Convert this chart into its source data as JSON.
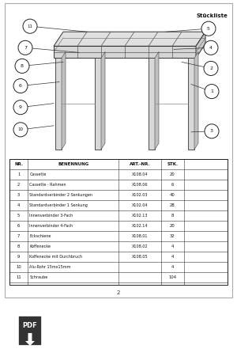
{
  "title_text": "Stückliste",
  "page_number": "2",
  "table_headers": [
    "NR.",
    "BENENNUNG",
    "ART.-NR.",
    "STK."
  ],
  "table_rows": [
    [
      "1",
      "Cassette",
      "X108.04",
      "20"
    ],
    [
      "2",
      "Cassette - Rahmen",
      "X108.06",
      "6"
    ],
    [
      "3",
      "Standardverbinder 2 Senkungen",
      "X102.03",
      "40"
    ],
    [
      "4",
      "Standardverbinder 1 Senkung",
      "X102.04",
      "28"
    ],
    [
      "5",
      "Innenverbinder 3-Fach",
      "X102.13",
      "8"
    ],
    [
      "6",
      "Innenverbinder 4-Fach",
      "X102.14",
      "20"
    ],
    [
      "7",
      "Eckschiene",
      "X108.01",
      "32"
    ],
    [
      "8",
      "Koffenecke",
      "X108.02",
      "4"
    ],
    [
      "9",
      "Koffenecke mit Durchbruch",
      "X108.05",
      "4"
    ],
    [
      "10",
      "Alu-Rohr 15mx15mm",
      "",
      "4"
    ],
    [
      "11",
      "Schraube",
      "",
      "104"
    ]
  ],
  "bg_white": "#ffffff",
  "bg_black": "#111111",
  "text_black": "#111111",
  "text_white": "#ffffff",
  "download_text": "Download PDF"
}
